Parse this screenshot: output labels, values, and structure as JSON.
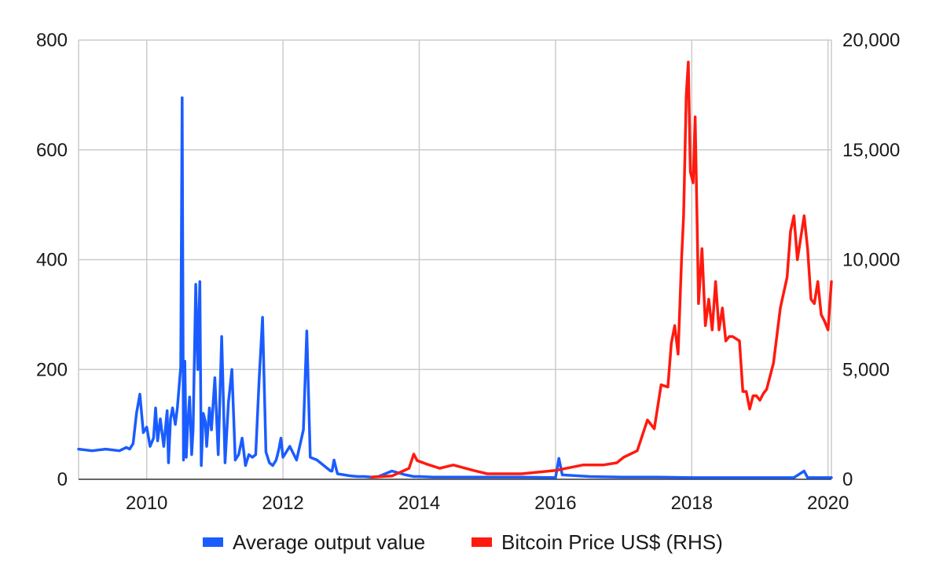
{
  "chart_data": {
    "type": "line",
    "title": "",
    "xlabel": "",
    "ylabel": "",
    "xlim": [
      2009.0,
      2020.05
    ],
    "x_ticks": [
      2010,
      2012,
      2014,
      2016,
      2018,
      2020
    ],
    "x_tick_labels": [
      "2010",
      "2012",
      "2014",
      "2016",
      "2018",
      "2020"
    ],
    "y_left": {
      "lim": [
        0,
        800
      ],
      "ticks": [
        0,
        200,
        400,
        600,
        800
      ],
      "tick_labels": [
        "0",
        "200",
        "400",
        "600",
        "800"
      ]
    },
    "y_right": {
      "lim": [
        0,
        20000
      ],
      "ticks": [
        0,
        5000,
        10000,
        15000,
        20000
      ],
      "tick_labels": [
        "0",
        "5,000",
        "10,000",
        "15,000",
        "20,000"
      ]
    },
    "grid": true,
    "legend_position": "bottom",
    "series": [
      {
        "name": "Average output value",
        "axis": "left",
        "color": "#1a5cff",
        "x": [
          2009.0,
          2009.2,
          2009.4,
          2009.6,
          2009.7,
          2009.75,
          2009.8,
          2009.85,
          2009.9,
          2009.95,
          2010.0,
          2010.05,
          2010.1,
          2010.13,
          2010.16,
          2010.2,
          2010.25,
          2010.3,
          2010.32,
          2010.35,
          2010.38,
          2010.42,
          2010.45,
          2010.5,
          2010.52,
          2010.54,
          2010.56,
          2010.58,
          2010.6,
          2010.63,
          2010.66,
          2010.68,
          2010.72,
          2010.75,
          2010.78,
          2010.8,
          2010.83,
          2010.86,
          2010.88,
          2010.92,
          2010.95,
          2011.0,
          2011.05,
          2011.1,
          2011.15,
          2011.2,
          2011.25,
          2011.3,
          2011.35,
          2011.4,
          2011.45,
          2011.5,
          2011.55,
          2011.6,
          2011.65,
          2011.7,
          2011.75,
          2011.8,
          2011.85,
          2011.9,
          2011.92,
          2011.94,
          2011.97,
          2012.0,
          2012.1,
          2012.2,
          2012.3,
          2012.35,
          2012.4,
          2012.5,
          2012.6,
          2012.65,
          2012.7,
          2012.72,
          2012.75,
          2012.8,
          2012.9,
          2013.0,
          2013.1,
          2013.2,
          2013.3,
          2013.4,
          2013.6,
          2013.8,
          2013.92,
          2014.0,
          2014.2,
          2014.5,
          2015.0,
          2015.5,
          2016.0,
          2016.05,
          2016.1,
          2016.5,
          2017.0,
          2017.5,
          2018.0,
          2018.5,
          2019.0,
          2019.5,
          2019.65,
          2019.7,
          2020.0,
          2020.05
        ],
        "y": [
          55,
          52,
          55,
          52,
          58,
          55,
          65,
          120,
          155,
          85,
          95,
          60,
          75,
          130,
          70,
          110,
          60,
          125,
          30,
          110,
          130,
          100,
          130,
          205,
          695,
          35,
          215,
          40,
          95,
          150,
          45,
          90,
          355,
          200,
          360,
          25,
          120,
          105,
          60,
          130,
          90,
          185,
          45,
          260,
          30,
          140,
          200,
          35,
          45,
          75,
          25,
          45,
          40,
          45,
          180,
          295,
          50,
          30,
          25,
          35,
          45,
          55,
          75,
          40,
          60,
          35,
          90,
          270,
          40,
          35,
          25,
          20,
          15,
          15,
          35,
          10,
          8,
          6,
          5,
          5,
          4,
          5,
          15,
          8,
          5,
          5,
          4,
          4,
          4,
          4,
          3,
          38,
          8,
          5,
          4,
          4,
          3,
          3,
          3,
          3,
          15,
          3,
          3,
          3
        ]
      },
      {
        "name": "Bitcoin Price US$ (RHS)",
        "axis": "right",
        "color": "#ff1a0f",
        "x": [
          2013.3,
          2013.6,
          2013.85,
          2013.92,
          2013.97,
          2014.1,
          2014.3,
          2014.5,
          2014.8,
          2015.0,
          2015.5,
          2016.0,
          2016.4,
          2016.7,
          2016.9,
          2017.0,
          2017.2,
          2017.35,
          2017.45,
          2017.55,
          2017.65,
          2017.7,
          2017.75,
          2017.8,
          2017.85,
          2017.88,
          2017.92,
          2017.95,
          2017.98,
          2018.02,
          2018.05,
          2018.08,
          2018.1,
          2018.15,
          2018.2,
          2018.25,
          2018.3,
          2018.35,
          2018.4,
          2018.45,
          2018.5,
          2018.55,
          2018.6,
          2018.7,
          2018.75,
          2018.8,
          2018.85,
          2018.9,
          2018.95,
          2019.0,
          2019.05,
          2019.1,
          2019.2,
          2019.3,
          2019.35,
          2019.4,
          2019.45,
          2019.5,
          2019.55,
          2019.6,
          2019.65,
          2019.7,
          2019.75,
          2019.8,
          2019.85,
          2019.9,
          2019.95,
          2020.0,
          2020.05
        ],
        "y": [
          100,
          150,
          500,
          1150,
          850,
          700,
          500,
          650,
          400,
          250,
          250,
          400,
          650,
          650,
          750,
          1000,
          1300,
          2700,
          2300,
          4300,
          4200,
          6200,
          7000,
          5700,
          10000,
          12000,
          17500,
          19000,
          14000,
          13500,
          16500,
          11500,
          8000,
          10500,
          7000,
          8200,
          6800,
          9000,
          6800,
          7800,
          6300,
          6500,
          6500,
          6300,
          4000,
          4000,
          3200,
          3800,
          3800,
          3600,
          3900,
          4100,
          5300,
          7800,
          8500,
          9200,
          11300,
          12000,
          10000,
          11000,
          12000,
          10500,
          8200,
          8000,
          9000,
          7500,
          7200,
          6800,
          9000
        ]
      }
    ]
  }
}
